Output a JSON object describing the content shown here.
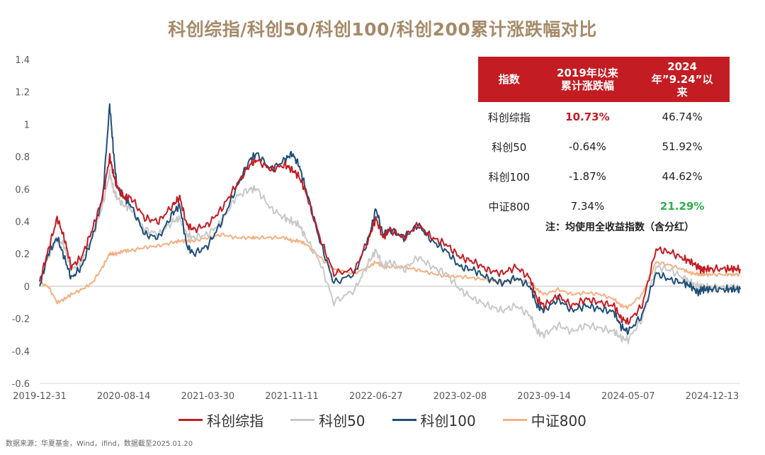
{
  "title": "科创综指/科创50/科创100/科创200累计涨跌幅对比",
  "source": "数据来源：华夏基金，Wind，ifind，数据截至2025.01.20",
  "table": {
    "headers": [
      "指数",
      "2019年以来\n累计涨跌幅",
      "2024\n年”9.24”以\n来"
    ],
    "rows": [
      {
        "name": "科创综指",
        "since2019": "10.73%",
        "since924": "46.74%",
        "highlight": "red"
      },
      {
        "name": "科创50",
        "since2019": "-0.64%",
        "since924": "51.92%",
        "highlight": ""
      },
      {
        "name": "科创100",
        "since2019": "-1.87%",
        "since924": "44.62%",
        "highlight": ""
      },
      {
        "name": "中证800",
        "since2019": "7.34%",
        "since924": "21.29%",
        "highlight": "green"
      }
    ],
    "note": "注：均使用全收益指数（含分红）"
  },
  "colors": {
    "kechuang_zongzhi": "#c41c23",
    "kechuang50": "#c8c8c8",
    "kechuang100": "#1f4e79",
    "zhongzheng800": "#f4b183",
    "header_bg": "#c41c23",
    "title": "#a58a68"
  },
  "chart_data": {
    "type": "line",
    "title": "科创综指/科创50/科创100/科创200累计涨跌幅对比",
    "xlabel": "",
    "ylabel": "",
    "ylim": [
      -0.6,
      1.4
    ],
    "yticks": [
      -0.6,
      -0.4,
      -0.2,
      0,
      0.2,
      0.4,
      0.6,
      0.8,
      1,
      1.2,
      1.4
    ],
    "ytick_labels": [
      "-0.6",
      "-0.4",
      "-0.2",
      "0",
      "0.2",
      "0.4",
      "0.6",
      "0.8",
      "1",
      "1.2",
      "1.4"
    ],
    "xtick_labels": [
      "2019-12-31",
      "2020-08-14",
      "2021-03-30",
      "2021-11-11",
      "2022-06-27",
      "2023-02-08",
      "2023-09-14",
      "2024-05-07",
      "2024-12-13"
    ],
    "xtick_positions": [
      0,
      0.12,
      0.24,
      0.36,
      0.48,
      0.6,
      0.72,
      0.84,
      0.96
    ],
    "legend": [
      "科创综指",
      "科创50",
      "科创100",
      "中证800"
    ],
    "series": [
      {
        "name": "科创综指",
        "color": "#c41c23",
        "x": [
          0,
          0.012,
          0.025,
          0.035,
          0.045,
          0.06,
          0.075,
          0.09,
          0.1,
          0.105,
          0.11,
          0.12,
          0.13,
          0.15,
          0.17,
          0.19,
          0.2,
          0.21,
          0.22,
          0.24,
          0.26,
          0.28,
          0.3,
          0.31,
          0.33,
          0.35,
          0.36,
          0.37,
          0.38,
          0.4,
          0.42,
          0.45,
          0.47,
          0.48,
          0.49,
          0.5,
          0.52,
          0.54,
          0.56,
          0.58,
          0.6,
          0.62,
          0.64,
          0.66,
          0.68,
          0.7,
          0.71,
          0.72,
          0.74,
          0.76,
          0.78,
          0.8,
          0.82,
          0.83,
          0.84,
          0.86,
          0.88,
          0.9,
          0.92,
          0.93,
          0.94,
          0.945,
          0.95,
          0.96,
          0.98,
          0.99,
          1.0
        ],
        "values": [
          0.03,
          0.22,
          0.42,
          0.3,
          0.12,
          0.18,
          0.35,
          0.55,
          0.8,
          0.7,
          0.62,
          0.55,
          0.55,
          0.42,
          0.4,
          0.5,
          0.55,
          0.38,
          0.35,
          0.38,
          0.48,
          0.62,
          0.75,
          0.78,
          0.72,
          0.75,
          0.72,
          0.68,
          0.58,
          0.3,
          0.08,
          0.1,
          0.3,
          0.42,
          0.3,
          0.35,
          0.3,
          0.38,
          0.3,
          0.26,
          0.18,
          0.15,
          0.1,
          0.08,
          0.12,
          0.05,
          -0.08,
          -0.12,
          -0.06,
          -0.12,
          -0.08,
          -0.1,
          -0.12,
          -0.2,
          -0.22,
          -0.12,
          0.23,
          0.21,
          0.17,
          0.15,
          0.12,
          0.1,
          0.107,
          0.107,
          0.107,
          0.107,
          0.107
        ]
      },
      {
        "name": "科创50",
        "color": "#c8c8c8",
        "x": [
          0,
          0.012,
          0.025,
          0.035,
          0.045,
          0.06,
          0.075,
          0.09,
          0.1,
          0.105,
          0.11,
          0.12,
          0.13,
          0.15,
          0.17,
          0.19,
          0.2,
          0.21,
          0.22,
          0.24,
          0.26,
          0.28,
          0.3,
          0.31,
          0.33,
          0.35,
          0.36,
          0.37,
          0.38,
          0.4,
          0.42,
          0.45,
          0.47,
          0.48,
          0.49,
          0.5,
          0.52,
          0.54,
          0.56,
          0.58,
          0.6,
          0.62,
          0.64,
          0.66,
          0.68,
          0.7,
          0.71,
          0.72,
          0.74,
          0.76,
          0.78,
          0.8,
          0.82,
          0.83,
          0.84,
          0.86,
          0.88,
          0.9,
          0.92,
          0.93,
          0.94,
          0.945,
          0.95,
          0.96,
          0.98,
          0.99,
          1.0
        ],
        "values": [
          0.02,
          0.18,
          0.3,
          0.25,
          0.1,
          0.15,
          0.3,
          0.5,
          0.7,
          0.6,
          0.55,
          0.5,
          0.48,
          0.35,
          0.32,
          0.4,
          0.42,
          0.32,
          0.3,
          0.32,
          0.4,
          0.55,
          0.6,
          0.6,
          0.48,
          0.42,
          0.4,
          0.38,
          0.3,
          0.15,
          -0.1,
          -0.02,
          0.15,
          0.22,
          0.12,
          0.15,
          0.1,
          0.18,
          0.12,
          0.08,
          -0.02,
          -0.08,
          -0.12,
          -0.15,
          -0.12,
          -0.18,
          -0.28,
          -0.3,
          -0.24,
          -0.28,
          -0.24,
          -0.26,
          -0.28,
          -0.32,
          -0.33,
          -0.2,
          0.12,
          0.1,
          0.05,
          0.02,
          0.0,
          -0.006,
          -0.006,
          -0.006,
          -0.006,
          -0.006,
          -0.006
        ]
      },
      {
        "name": "科创100",
        "color": "#1f4e79",
        "x": [
          0,
          0.012,
          0.025,
          0.035,
          0.045,
          0.06,
          0.075,
          0.09,
          0.1,
          0.105,
          0.11,
          0.12,
          0.13,
          0.15,
          0.17,
          0.19,
          0.2,
          0.21,
          0.22,
          0.24,
          0.26,
          0.28,
          0.3,
          0.31,
          0.33,
          0.35,
          0.36,
          0.37,
          0.38,
          0.4,
          0.42,
          0.45,
          0.47,
          0.48,
          0.49,
          0.5,
          0.52,
          0.54,
          0.56,
          0.58,
          0.6,
          0.62,
          0.64,
          0.66,
          0.68,
          0.7,
          0.71,
          0.72,
          0.74,
          0.76,
          0.78,
          0.8,
          0.82,
          0.83,
          0.84,
          0.86,
          0.88,
          0.9,
          0.92,
          0.93,
          0.94,
          0.945,
          0.95,
          0.96,
          0.98,
          0.99,
          1.0
        ],
        "values": [
          0.0,
          0.2,
          0.3,
          0.18,
          0.05,
          0.12,
          0.3,
          0.55,
          1.12,
          0.85,
          0.62,
          0.55,
          0.5,
          0.32,
          0.3,
          0.45,
          0.5,
          0.25,
          0.2,
          0.25,
          0.4,
          0.6,
          0.78,
          0.82,
          0.72,
          0.78,
          0.82,
          0.75,
          0.6,
          0.28,
          0.02,
          0.08,
          0.3,
          0.48,
          0.32,
          0.35,
          0.3,
          0.38,
          0.28,
          0.22,
          0.12,
          0.1,
          0.05,
          0.02,
          0.05,
          0.0,
          -0.12,
          -0.15,
          -0.08,
          -0.15,
          -0.12,
          -0.14,
          -0.16,
          -0.25,
          -0.28,
          -0.18,
          0.08,
          0.04,
          0.02,
          0.0,
          -0.04,
          -0.019,
          -0.019,
          -0.019,
          -0.019,
          -0.019,
          -0.019
        ]
      },
      {
        "name": "中证800",
        "color": "#f4b183",
        "x": [
          0,
          0.012,
          0.025,
          0.035,
          0.045,
          0.06,
          0.075,
          0.09,
          0.1,
          0.105,
          0.11,
          0.12,
          0.13,
          0.15,
          0.17,
          0.19,
          0.2,
          0.21,
          0.22,
          0.24,
          0.26,
          0.28,
          0.3,
          0.31,
          0.33,
          0.35,
          0.36,
          0.37,
          0.38,
          0.4,
          0.42,
          0.45,
          0.47,
          0.48,
          0.49,
          0.5,
          0.52,
          0.54,
          0.56,
          0.58,
          0.6,
          0.62,
          0.64,
          0.66,
          0.68,
          0.7,
          0.71,
          0.72,
          0.74,
          0.76,
          0.78,
          0.8,
          0.82,
          0.83,
          0.84,
          0.86,
          0.88,
          0.9,
          0.92,
          0.93,
          0.94,
          0.945,
          0.95,
          0.96,
          0.98,
          0.99,
          1.0
        ],
        "values": [
          0.02,
          0.0,
          -0.1,
          -0.08,
          -0.05,
          -0.02,
          0.02,
          0.12,
          0.2,
          0.2,
          0.2,
          0.22,
          0.22,
          0.24,
          0.25,
          0.27,
          0.28,
          0.28,
          0.28,
          0.3,
          0.32,
          0.3,
          0.3,
          0.3,
          0.3,
          0.3,
          0.28,
          0.28,
          0.26,
          0.18,
          0.1,
          0.08,
          0.12,
          0.15,
          0.12,
          0.12,
          0.12,
          0.1,
          0.08,
          0.06,
          0.06,
          0.05,
          0.04,
          0.02,
          0.05,
          0.02,
          -0.02,
          -0.05,
          -0.02,
          -0.05,
          -0.04,
          -0.05,
          -0.08,
          -0.12,
          -0.13,
          -0.05,
          0.15,
          0.13,
          0.1,
          0.08,
          0.075,
          0.073,
          0.073,
          0.073,
          0.073,
          0.073,
          0.073
        ]
      }
    ]
  }
}
